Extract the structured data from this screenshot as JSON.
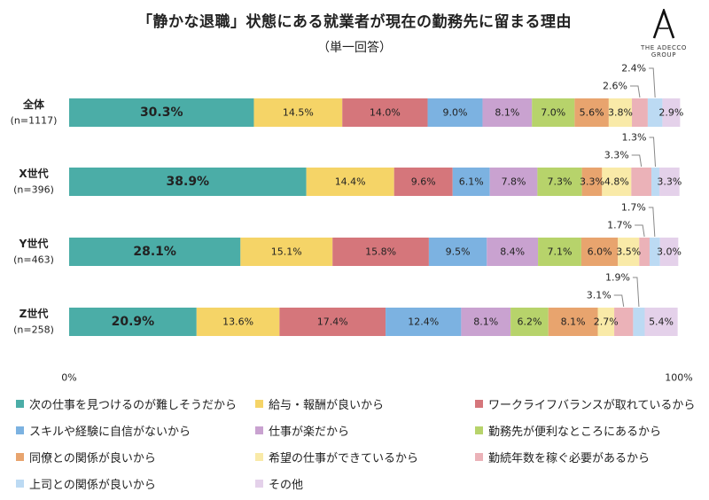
{
  "header": {
    "title": "「静かな退職」状態にある就業者が現在の勤務先に留まる理由",
    "subtitle": "（単一回答）"
  },
  "logo": {
    "text": "THE ADECCO GROUP"
  },
  "chart_data": {
    "type": "bar",
    "orientation": "horizontal",
    "stacked": "100%",
    "categories": [
      {
        "name": "全体",
        "n": "(n=1117)"
      },
      {
        "name": "X世代",
        "n": "(n=396)"
      },
      {
        "name": "Y世代",
        "n": "(n=463)"
      },
      {
        "name": "Z世代",
        "n": "(n=258)"
      }
    ],
    "series": [
      {
        "name": "次の仕事を見つけるのが難しそうだから",
        "color": "#4bada7",
        "values": [
          30.3,
          38.9,
          28.1,
          20.9
        ]
      },
      {
        "name": "給与・報酬が良いから",
        "color": "#f5d467",
        "values": [
          14.5,
          14.4,
          15.1,
          13.6
        ]
      },
      {
        "name": "ワークライフバランスが取れているから",
        "color": "#d5767b",
        "values": [
          14.0,
          9.6,
          15.8,
          17.4
        ]
      },
      {
        "name": "スキルや経験に自信がないから",
        "color": "#7cb2e1",
        "values": [
          9.0,
          6.1,
          9.5,
          12.4
        ]
      },
      {
        "name": "仕事が楽だから",
        "color": "#c9a2d0",
        "values": [
          8.1,
          7.8,
          8.4,
          8.1
        ]
      },
      {
        "name": "勤務先が便利なところにあるから",
        "color": "#b7d36b",
        "values": [
          7.0,
          7.3,
          7.1,
          6.2
        ]
      },
      {
        "name": "同僚との関係が良いから",
        "color": "#e8a46e",
        "values": [
          5.6,
          3.3,
          6.0,
          8.1
        ]
      },
      {
        "name": "希望の仕事ができているから",
        "color": "#f9eaa8",
        "values": [
          3.8,
          4.8,
          3.5,
          2.7
        ]
      },
      {
        "name": "勤続年数を稼ぐ必要があるから",
        "color": "#ebb2b8",
        "values": [
          2.6,
          3.3,
          1.7,
          3.1
        ]
      },
      {
        "name": "上司との関係が良いから",
        "color": "#bcdaf3",
        "values": [
          2.4,
          1.3,
          1.7,
          1.9
        ]
      },
      {
        "name": "その他",
        "color": "#e4d1ea",
        "values": [
          2.9,
          3.3,
          3.0,
          5.4
        ]
      }
    ],
    "value_labels": [
      [
        "30.3%",
        "14.5%",
        "14.0%",
        "9.0%",
        "8.1%",
        "7.0%",
        "5.6%",
        "3.8%",
        "2.6%",
        "2.4%",
        "2.9%"
      ],
      [
        "38.9%",
        "14.4%",
        "9.6%",
        "6.1%",
        "7.8%",
        "7.3%",
        "3.3%",
        "4.8%",
        "3.3%",
        "1.3%",
        "3.3%"
      ],
      [
        "28.1%",
        "15.1%",
        "15.8%",
        "9.5%",
        "8.4%",
        "7.1%",
        "6.0%",
        "3.5%",
        "1.7%",
        "1.7%",
        "3.0%"
      ],
      [
        "20.9%",
        "13.6%",
        "17.4%",
        "12.4%",
        "8.1%",
        "6.2%",
        "8.1%",
        "2.7%",
        "3.1%",
        "1.9%",
        "5.4%"
      ]
    ],
    "axis": {
      "min_label": "0%",
      "max_label": "100%",
      "range": [
        0,
        100
      ]
    },
    "legend_position": "bottom",
    "grid": false
  }
}
